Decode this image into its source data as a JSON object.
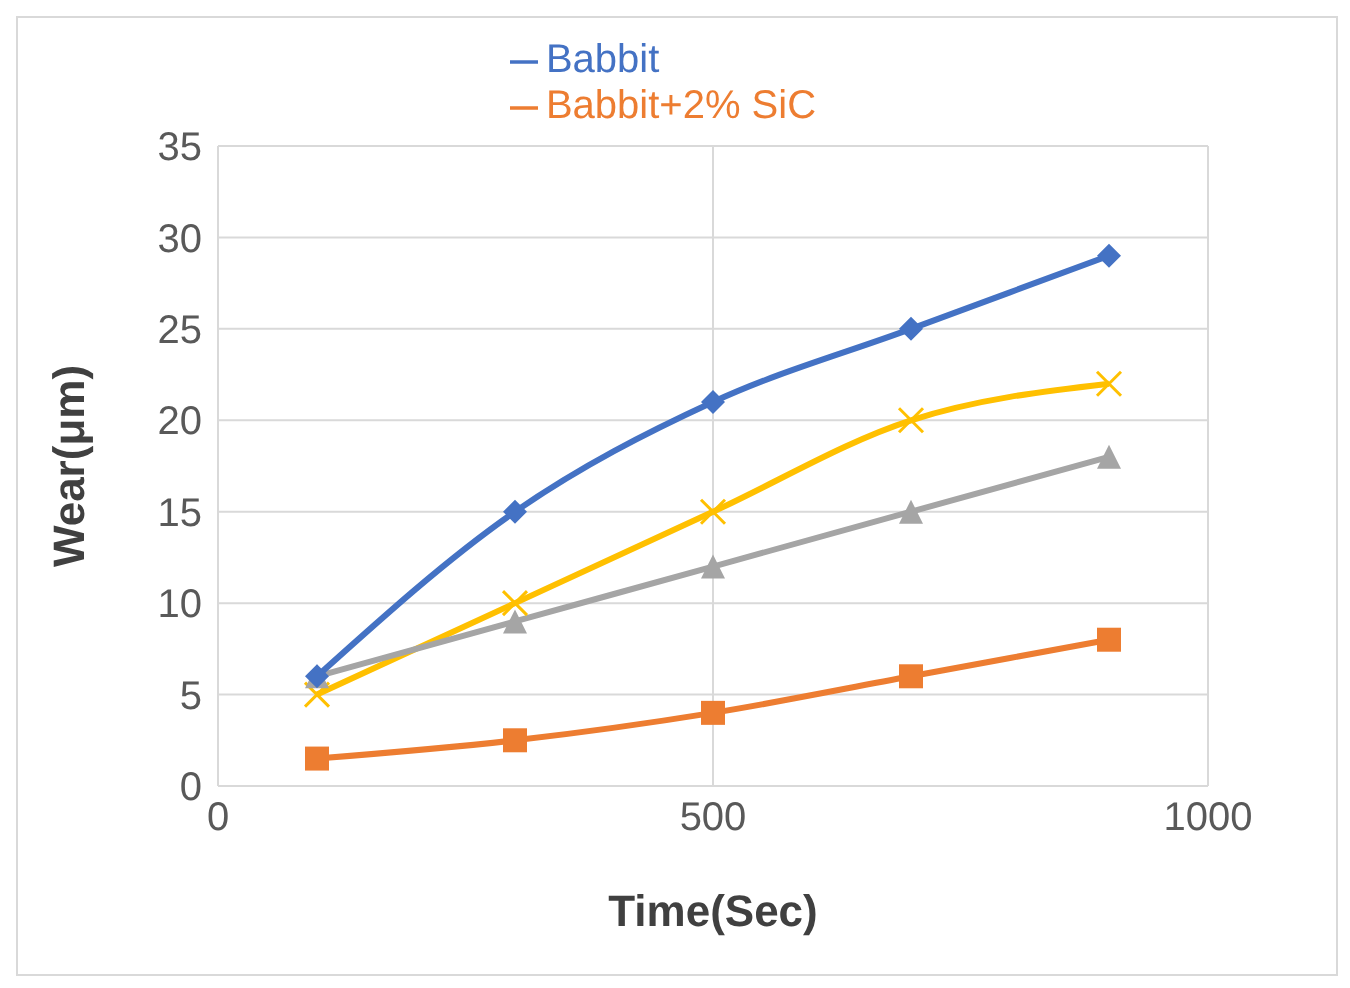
{
  "chart_data": {
    "type": "line",
    "xlabel": "Time(Sec)",
    "ylabel": "Wear(μm)",
    "x": [
      100,
      300,
      500,
      700,
      900
    ],
    "series": [
      {
        "name": "Babbit",
        "color": "#4472c4",
        "marker": "diamond",
        "values": [
          6,
          15,
          21,
          25,
          29
        ]
      },
      {
        "name": "Babbit+2% SiC",
        "color": "#ed7d31",
        "marker": "square",
        "values": [
          1.5,
          2.5,
          4,
          6,
          8
        ]
      },
      {
        "color": "#a5a5a5",
        "marker": "triangle",
        "values": [
          6,
          9,
          12,
          15,
          18
        ]
      },
      {
        "color": "#ffc000",
        "marker": "cross",
        "values": [
          5,
          10,
          15,
          20,
          22
        ]
      }
    ],
    "xlim": [
      0,
      1000
    ],
    "xticks": [
      0,
      500,
      1000
    ],
    "ylim": [
      0,
      35
    ],
    "yticks": [
      0,
      5,
      10,
      15,
      20,
      25,
      30,
      35
    ],
    "grid": true,
    "legend": "top"
  }
}
